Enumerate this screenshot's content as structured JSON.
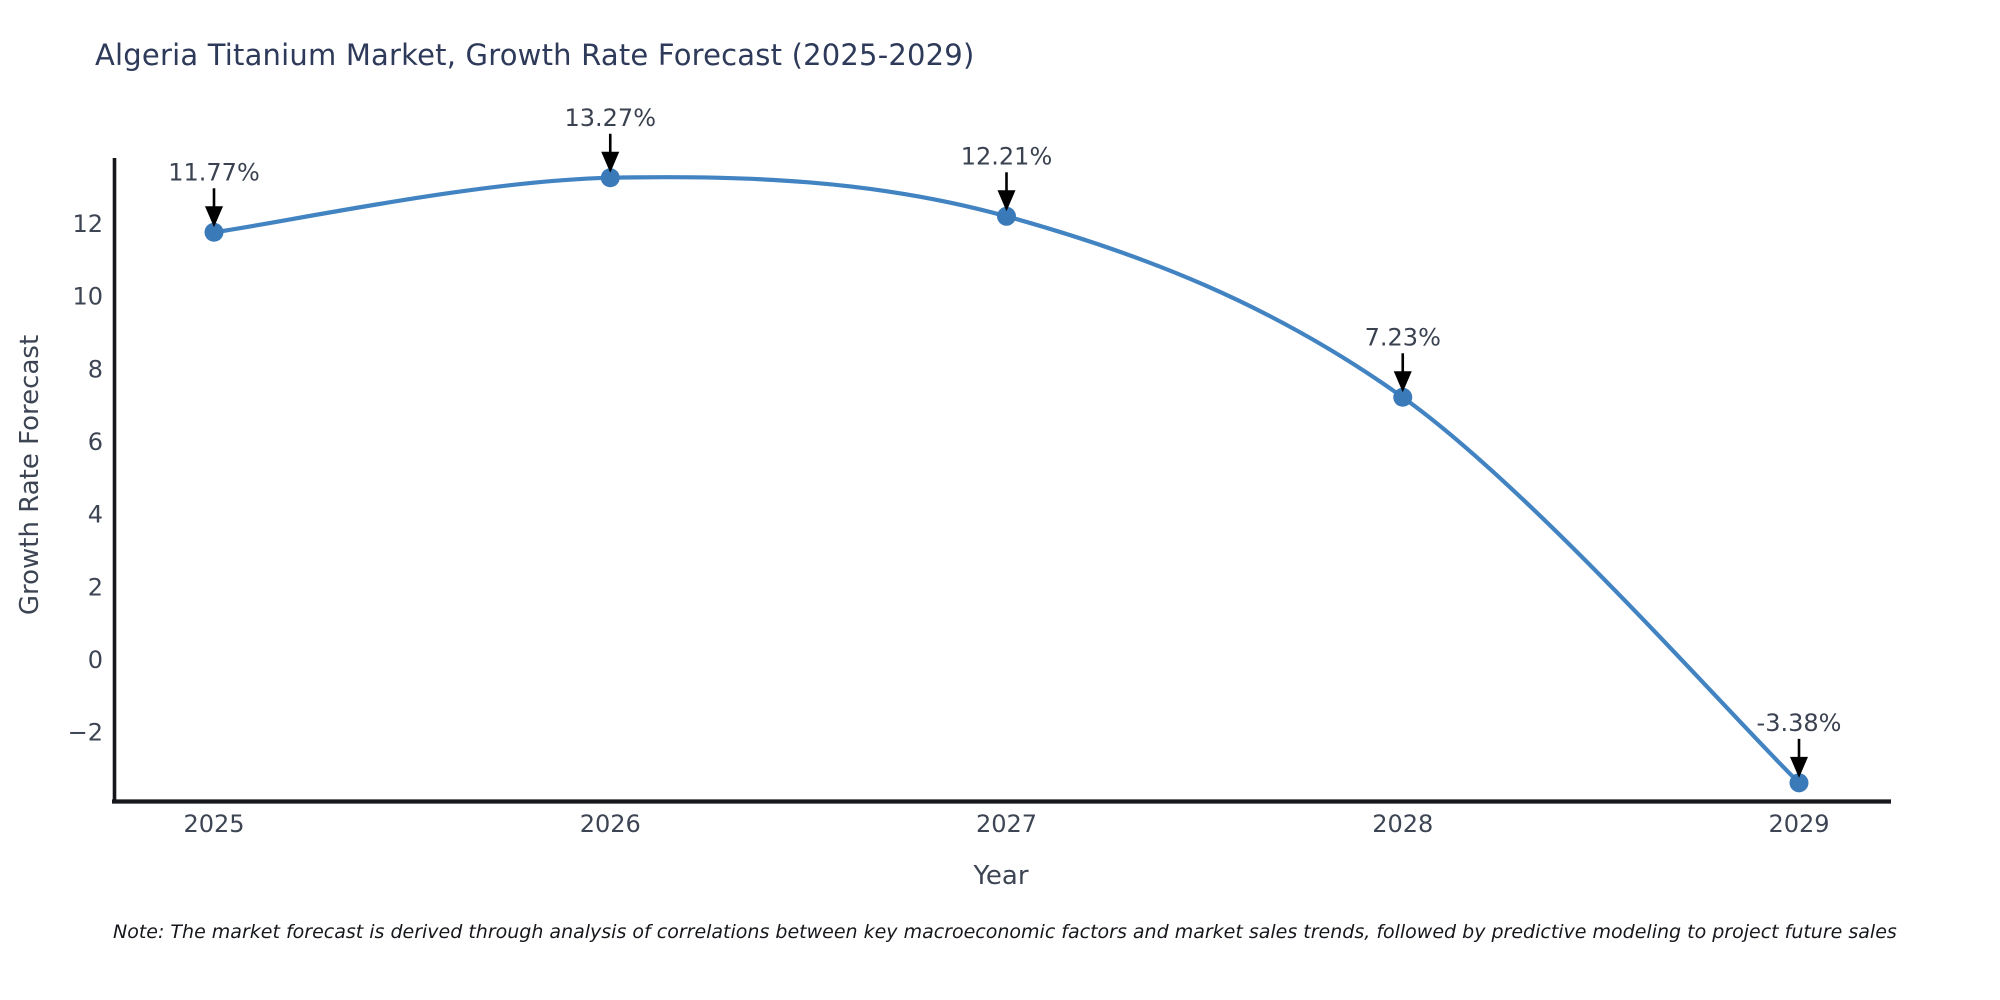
{
  "title": "Algeria Titanium Market, Growth Rate Forecast (2025-2029)",
  "note": "Note: The market forecast is derived through analysis of correlations between key macroeconomic factors and market sales trends, followed by predictive modeling to project future sales",
  "chart_data": {
    "type": "line",
    "title": "Algeria Titanium Market, Growth Rate Forecast (2025-2029)",
    "xlabel": "Year",
    "ylabel": "Growth Rate Forecast",
    "x": [
      2025,
      2026,
      2027,
      2028,
      2029
    ],
    "values": [
      11.77,
      13.27,
      12.21,
      7.23,
      -3.38
    ],
    "point_labels": [
      "11.77%",
      "13.27%",
      "12.21%",
      "7.23%",
      "-3.38%"
    ],
    "x_tick_labels": [
      "2025",
      "2026",
      "2027",
      "2028",
      "2029"
    ],
    "y_ticks": [
      -2,
      0,
      2,
      4,
      6,
      8,
      10,
      12
    ],
    "y_tick_labels": [
      "−2",
      "0",
      "2",
      "4",
      "6",
      "8",
      "10",
      "12"
    ],
    "ylim": [
      -3.9,
      13.8
    ],
    "grid": false,
    "legend": null,
    "smooth_curve": true,
    "colors": {
      "line": "#4283c2",
      "marker": "#3a7ab8",
      "annotation_text": "#3a4150",
      "annotation_arrow": "#000000",
      "axis_spine": "#15171c",
      "tick_label": "#3d4554",
      "title": "#2e3a59"
    }
  }
}
